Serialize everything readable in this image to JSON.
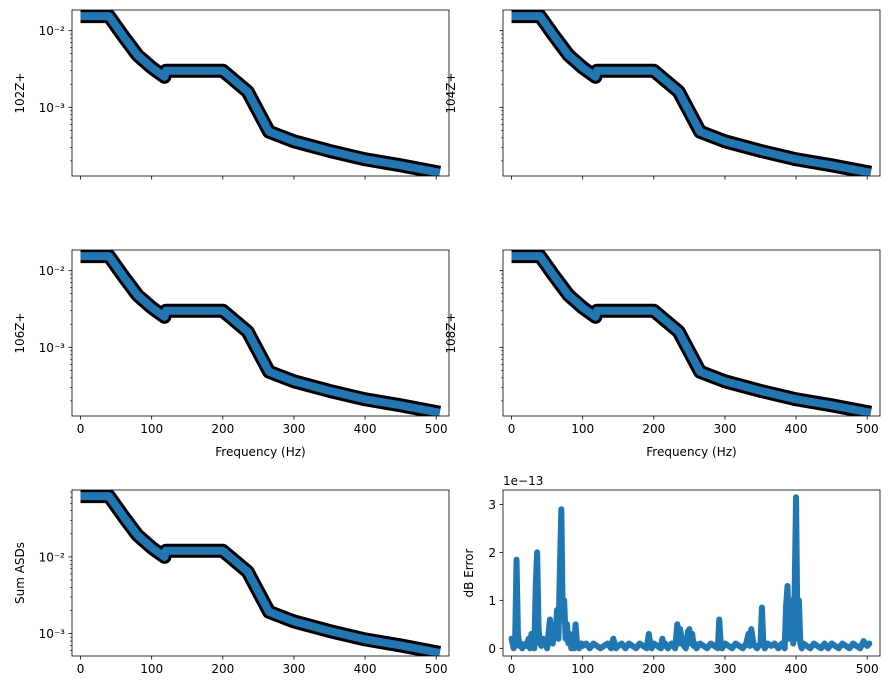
{
  "figure": {
    "background": "#ffffff"
  },
  "chart_data": [
    {
      "type": "line",
      "title": "",
      "xlabel": "",
      "ylabel": "102Z+",
      "yscale": "log",
      "xlim": [
        -12,
        518
      ],
      "ylim": [
        0.000127,
        0.0186
      ],
      "xticks": [
        0,
        100,
        200,
        300,
        400,
        500
      ],
      "xtick_labels_shown": false,
      "yticks": [
        0.001,
        0.01
      ],
      "ytick_labels": [
        "10⁻³",
        "10⁻²"
      ],
      "grid": false,
      "series": [
        {
          "color": "#1f77b4",
          "outline_color": "#000000",
          "x": [
            0,
            40,
            60,
            80,
            100,
            118,
            120,
            200,
            235,
            265,
            300,
            350,
            400,
            450,
            505
          ],
          "y": [
            0.0155,
            0.0155,
            0.0085,
            0.0048,
            0.0033,
            0.0025,
            0.003,
            0.003,
            0.0016,
            0.00048,
            0.00036,
            0.00027,
            0.00021,
            0.000175,
            0.00014
          ]
        }
      ]
    },
    {
      "type": "line",
      "title": "",
      "xlabel": "",
      "ylabel": "104Z+",
      "yscale": "log",
      "xlim": [
        -12,
        518
      ],
      "ylim": [
        0.000127,
        0.0186
      ],
      "xticks": [
        0,
        100,
        200,
        300,
        400,
        500
      ],
      "xtick_labels_shown": false,
      "yticks": [
        0.001,
        0.01
      ],
      "ytick_labels": [],
      "grid": false,
      "series": [
        {
          "color": "#1f77b4",
          "outline_color": "#000000",
          "x": [
            0,
            40,
            60,
            80,
            100,
            118,
            120,
            200,
            235,
            265,
            300,
            350,
            400,
            450,
            505
          ],
          "y": [
            0.0155,
            0.0155,
            0.0085,
            0.0048,
            0.0033,
            0.0025,
            0.003,
            0.003,
            0.0016,
            0.00048,
            0.00036,
            0.00027,
            0.00021,
            0.000175,
            0.00014
          ]
        }
      ]
    },
    {
      "type": "line",
      "title": "",
      "xlabel": "Frequency (Hz)",
      "ylabel": "106Z+",
      "yscale": "log",
      "xlim": [
        -12,
        518
      ],
      "ylim": [
        0.000127,
        0.0186
      ],
      "xticks": [
        0,
        100,
        200,
        300,
        400,
        500
      ],
      "xtick_labels_shown": true,
      "yticks": [
        0.001,
        0.01
      ],
      "ytick_labels": [
        "10⁻³",
        "10⁻²"
      ],
      "grid": false,
      "series": [
        {
          "color": "#1f77b4",
          "outline_color": "#000000",
          "x": [
            0,
            40,
            60,
            80,
            100,
            118,
            120,
            200,
            235,
            265,
            300,
            350,
            400,
            450,
            505
          ],
          "y": [
            0.0155,
            0.0155,
            0.0085,
            0.0048,
            0.0033,
            0.0025,
            0.003,
            0.003,
            0.0016,
            0.00048,
            0.00036,
            0.00027,
            0.00021,
            0.000175,
            0.00014
          ]
        }
      ]
    },
    {
      "type": "line",
      "title": "",
      "xlabel": "Frequency (Hz)",
      "ylabel": "108Z+",
      "yscale": "log",
      "xlim": [
        -12,
        518
      ],
      "ylim": [
        0.000127,
        0.0186
      ],
      "xticks": [
        0,
        100,
        200,
        300,
        400,
        500
      ],
      "xtick_labels_shown": true,
      "yticks": [
        0.001,
        0.01
      ],
      "ytick_labels": [],
      "grid": false,
      "series": [
        {
          "color": "#1f77b4",
          "outline_color": "#000000",
          "x": [
            0,
            40,
            60,
            80,
            100,
            118,
            120,
            200,
            235,
            265,
            300,
            350,
            400,
            450,
            505
          ],
          "y": [
            0.0155,
            0.0155,
            0.0085,
            0.0048,
            0.0033,
            0.0025,
            0.003,
            0.003,
            0.0016,
            0.00048,
            0.00036,
            0.00027,
            0.00021,
            0.000175,
            0.00014
          ]
        }
      ]
    },
    {
      "type": "line",
      "title": "",
      "xlabel": "",
      "ylabel": "Sum ASDs",
      "yscale": "log",
      "xlim": [
        -12,
        518
      ],
      "ylim": [
        0.00051,
        0.0745
      ],
      "xticks": [
        0,
        100,
        200,
        300,
        400,
        500
      ],
      "xtick_labels_shown": true,
      "yticks": [
        0.001,
        0.01
      ],
      "ytick_labels": [
        "10⁻³",
        "10⁻²"
      ],
      "grid": false,
      "series": [
        {
          "color": "#1f77b4",
          "outline_color": "#000000",
          "x": [
            0,
            40,
            60,
            80,
            100,
            118,
            120,
            200,
            235,
            265,
            300,
            350,
            400,
            450,
            505
          ],
          "y": [
            0.062,
            0.062,
            0.034,
            0.0192,
            0.0132,
            0.01,
            0.012,
            0.012,
            0.0064,
            0.00192,
            0.00144,
            0.00108,
            0.00084,
            0.0007,
            0.00056
          ]
        }
      ]
    },
    {
      "type": "line",
      "title": "",
      "xlabel": "",
      "ylabel": "dB Error",
      "yscale": "linear",
      "offset_label": "1e−13",
      "xlim": [
        -12,
        518
      ],
      "ylim": [
        -0.16,
        3.3
      ],
      "xticks": [
        0,
        100,
        200,
        300,
        400,
        500
      ],
      "xtick_labels_shown": true,
      "yticks": [
        0,
        1,
        2,
        3
      ],
      "ytick_labels": [
        "0",
        "1",
        "2",
        "3"
      ],
      "grid": false,
      "series": [
        {
          "color": "#1f77b4",
          "x": [
            0,
            3,
            5,
            7,
            9,
            11,
            13,
            15,
            17,
            20,
            22,
            24,
            26,
            28,
            30,
            32,
            34,
            36,
            38,
            40,
            42,
            44,
            46,
            48,
            50,
            52,
            54,
            56,
            58,
            60,
            62,
            64,
            66,
            68,
            70,
            72,
            74,
            76,
            78,
            80,
            82,
            84,
            86,
            88,
            90,
            92,
            95,
            98,
            100,
            105,
            110,
            115,
            120,
            125,
            130,
            135,
            140,
            143,
            145,
            147,
            150,
            155,
            160,
            165,
            170,
            175,
            180,
            185,
            190,
            193,
            195,
            197,
            200,
            205,
            210,
            212,
            214,
            216,
            220,
            225,
            230,
            233,
            235,
            237,
            240,
            245,
            248,
            250,
            252,
            254,
            256,
            258,
            260,
            265,
            270,
            275,
            280,
            285,
            290,
            292,
            294,
            296,
            300,
            305,
            310,
            315,
            320,
            325,
            330,
            333,
            335,
            337,
            340,
            345,
            350,
            352,
            354,
            356,
            360,
            365,
            370,
            375,
            380,
            384,
            386,
            388,
            390,
            392,
            394,
            396,
            398,
            400,
            402,
            404,
            406,
            408,
            410,
            415,
            420,
            425,
            430,
            435,
            440,
            445,
            450,
            455,
            460,
            465,
            470,
            475,
            480,
            485,
            490,
            495,
            500,
            503
          ],
          "y": [
            0.2,
            0.0,
            0.1,
            1.85,
            0.3,
            0.05,
            0.1,
            0.0,
            0.05,
            0.1,
            0.05,
            0.2,
            0.0,
            0.3,
            0.05,
            0.0,
            1.3,
            2.0,
            0.4,
            0.1,
            0.05,
            0.2,
            0.1,
            0.15,
            0.0,
            0.3,
            0.6,
            0.2,
            0.1,
            0.5,
            0.3,
            0.8,
            0.2,
            1.7,
            2.9,
            0.6,
            1.0,
            0.2,
            0.5,
            0.1,
            0.3,
            0.0,
            0.2,
            0.0,
            0.5,
            0.1,
            0.0,
            0.1,
            0.05,
            0.1,
            0.0,
            0.1,
            0.05,
            0.0,
            0.05,
            0.1,
            0.0,
            0.2,
            0.1,
            0.0,
            0.05,
            0.1,
            0.0,
            0.1,
            0.05,
            0.0,
            0.1,
            0.05,
            0.0,
            0.3,
            0.1,
            0.0,
            0.1,
            0.05,
            0.0,
            0.2,
            0.05,
            0.1,
            0.0,
            0.1,
            0.0,
            0.5,
            0.1,
            0.4,
            0.1,
            0.0,
            0.35,
            0.4,
            0.1,
            0.3,
            0.05,
            0.1,
            0.0,
            0.1,
            0.05,
            0.0,
            0.1,
            0.05,
            0.0,
            0.6,
            0.1,
            0.0,
            0.1,
            0.05,
            0.0,
            0.1,
            0.05,
            0.0,
            0.1,
            0.3,
            0.05,
            0.4,
            0.1,
            0.0,
            0.1,
            0.85,
            0.1,
            0.0,
            0.1,
            0.05,
            0.1,
            0.0,
            0.1,
            0.0,
            0.9,
            1.3,
            0.2,
            1.0,
            0.5,
            0.1,
            1.2,
            3.15,
            0.2,
            1.0,
            0.1,
            0.0,
            0.1,
            0.05,
            0.0,
            0.1,
            0.05,
            0.0,
            0.1,
            0.0,
            0.1,
            0.05,
            0.0,
            0.1,
            0.05,
            0.0,
            0.1,
            0.05,
            0.0,
            0.15,
            0.05,
            0.1
          ]
        }
      ]
    }
  ]
}
